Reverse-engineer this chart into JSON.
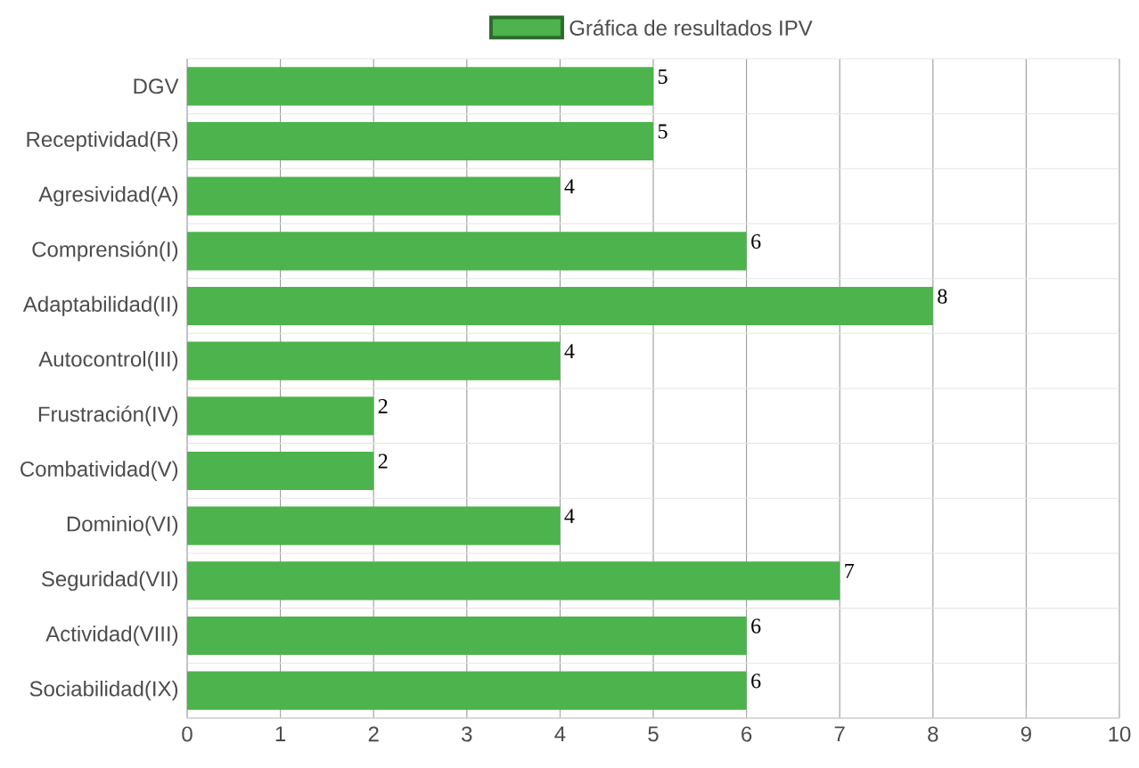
{
  "chart_data": {
    "type": "bar",
    "orientation": "horizontal",
    "categories": [
      "DGV",
      "Receptividad(R)",
      "Agresividad(A)",
      "Comprensión(I)",
      "Adaptabilidad(II)",
      "Autocontrol(III)",
      "Frustración(IV)",
      "Combatividad(V)",
      "Dominio(VI)",
      "Seguridad(VII)",
      "Actividad(VIII)",
      "Sociabilidad(IX)"
    ],
    "series": [
      {
        "name": "Gráfica de resultados IPV",
        "color": "#4db34d",
        "values": [
          5,
          5,
          4,
          6,
          8,
          4,
          2,
          2,
          4,
          7,
          6,
          6
        ]
      }
    ],
    "xlim": [
      0,
      10
    ],
    "xticks": [
      0,
      1,
      2,
      3,
      4,
      5,
      6,
      7,
      8,
      9,
      10
    ],
    "grid": true,
    "legend": "top",
    "data_labels": true
  }
}
